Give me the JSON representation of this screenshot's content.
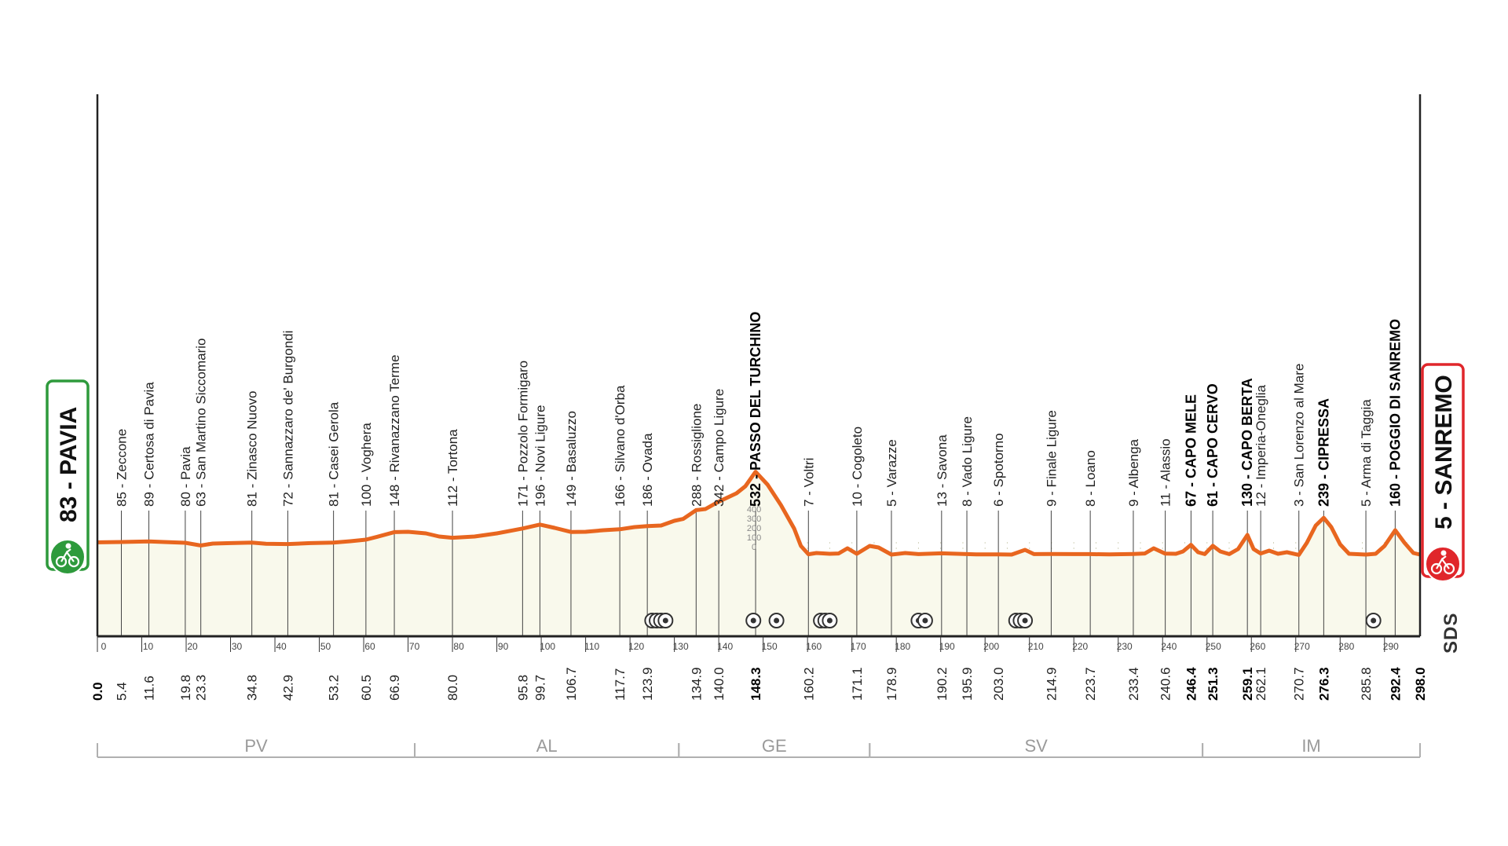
{
  "chart_data": {
    "type": "area",
    "title": "",
    "xlabel": "",
    "ylabel": "",
    "xlim": [
      0,
      298
    ],
    "ylim": [
      0,
      600
    ],
    "grid": true,
    "start": {
      "label": "83 - PAVIA",
      "color": "#2e9a3c"
    },
    "finish": {
      "label": "5 - SANREMO",
      "color": "#e0262b"
    },
    "brand": "SDS",
    "colors": {
      "profile": "#e8661f",
      "fill": "#f9f9ec",
      "axis": "#222222",
      "region": "#b0b0b0"
    },
    "axis_ticks": [
      0,
      10,
      20,
      30,
      40,
      50,
      60,
      70,
      80,
      90,
      100,
      110,
      120,
      130,
      140,
      150,
      160,
      170,
      180,
      190,
      200,
      210,
      220,
      230,
      240,
      250,
      260,
      270,
      280,
      290
    ],
    "altitude_ticks": [
      "400",
      "300",
      "200",
      "100",
      "0"
    ],
    "profile": [
      {
        "x": 0,
        "y": 83
      },
      {
        "x": 5.4,
        "y": 85
      },
      {
        "x": 11.6,
        "y": 89
      },
      {
        "x": 15,
        "y": 85
      },
      {
        "x": 19.8,
        "y": 80
      },
      {
        "x": 23.3,
        "y": 63
      },
      {
        "x": 26,
        "y": 75
      },
      {
        "x": 30,
        "y": 78
      },
      {
        "x": 34.8,
        "y": 81
      },
      {
        "x": 38,
        "y": 74
      },
      {
        "x": 42.9,
        "y": 72
      },
      {
        "x": 48,
        "y": 78
      },
      {
        "x": 53.2,
        "y": 81
      },
      {
        "x": 57,
        "y": 90
      },
      {
        "x": 60.5,
        "y": 100
      },
      {
        "x": 63,
        "y": 118
      },
      {
        "x": 66.9,
        "y": 148
      },
      {
        "x": 70,
        "y": 150
      },
      {
        "x": 74,
        "y": 140
      },
      {
        "x": 77,
        "y": 120
      },
      {
        "x": 80,
        "y": 112
      },
      {
        "x": 85,
        "y": 120
      },
      {
        "x": 90,
        "y": 140
      },
      {
        "x": 95.8,
        "y": 171
      },
      {
        "x": 99.7,
        "y": 196
      },
      {
        "x": 103,
        "y": 175
      },
      {
        "x": 106.7,
        "y": 149
      },
      {
        "x": 110,
        "y": 150
      },
      {
        "x": 114,
        "y": 160
      },
      {
        "x": 117.7,
        "y": 166
      },
      {
        "x": 121,
        "y": 180
      },
      {
        "x": 123.9,
        "y": 186
      },
      {
        "x": 127,
        "y": 190
      },
      {
        "x": 130,
        "y": 220
      },
      {
        "x": 132,
        "y": 232
      },
      {
        "x": 134.9,
        "y": 288
      },
      {
        "x": 137,
        "y": 295
      },
      {
        "x": 140,
        "y": 342
      },
      {
        "x": 144,
        "y": 395
      },
      {
        "x": 146,
        "y": 440
      },
      {
        "x": 148.3,
        "y": 532
      },
      {
        "x": 151,
        "y": 450
      },
      {
        "x": 154,
        "y": 320
      },
      {
        "x": 157,
        "y": 170
      },
      {
        "x": 158.5,
        "y": 60
      },
      {
        "x": 160.2,
        "y": 7
      },
      {
        "x": 162,
        "y": 15
      },
      {
        "x": 165,
        "y": 10
      },
      {
        "x": 167,
        "y": 12
      },
      {
        "x": 169,
        "y": 45
      },
      {
        "x": 171.1,
        "y": 10
      },
      {
        "x": 174,
        "y": 60
      },
      {
        "x": 176,
        "y": 50
      },
      {
        "x": 178.9,
        "y": 5
      },
      {
        "x": 182,
        "y": 15
      },
      {
        "x": 185,
        "y": 8
      },
      {
        "x": 190.2,
        "y": 13
      },
      {
        "x": 195.9,
        "y": 8
      },
      {
        "x": 198,
        "y": 6
      },
      {
        "x": 203,
        "y": 6
      },
      {
        "x": 206,
        "y": 5
      },
      {
        "x": 209,
        "y": 35
      },
      {
        "x": 211,
        "y": 8
      },
      {
        "x": 214.9,
        "y": 9
      },
      {
        "x": 220,
        "y": 8
      },
      {
        "x": 223.7,
        "y": 8
      },
      {
        "x": 228,
        "y": 6
      },
      {
        "x": 233.4,
        "y": 9
      },
      {
        "x": 236,
        "y": 12
      },
      {
        "x": 238,
        "y": 45
      },
      {
        "x": 240.6,
        "y": 11
      },
      {
        "x": 243,
        "y": 10
      },
      {
        "x": 244.6,
        "y": 25
      },
      {
        "x": 246.4,
        "y": 67
      },
      {
        "x": 248,
        "y": 20
      },
      {
        "x": 249.5,
        "y": 8
      },
      {
        "x": 251.3,
        "y": 61
      },
      {
        "x": 253,
        "y": 25
      },
      {
        "x": 255,
        "y": 8
      },
      {
        "x": 257,
        "y": 40
      },
      {
        "x": 259.1,
        "y": 130
      },
      {
        "x": 260.5,
        "y": 40
      },
      {
        "x": 262.1,
        "y": 12
      },
      {
        "x": 264,
        "y": 30
      },
      {
        "x": 266,
        "y": 10
      },
      {
        "x": 268,
        "y": 20
      },
      {
        "x": 270.7,
        "y": 3
      },
      {
        "x": 272.5,
        "y": 80
      },
      {
        "x": 274.5,
        "y": 190
      },
      {
        "x": 276.3,
        "y": 239
      },
      {
        "x": 278,
        "y": 180
      },
      {
        "x": 280,
        "y": 70
      },
      {
        "x": 282,
        "y": 10
      },
      {
        "x": 285.8,
        "y": 5
      },
      {
        "x": 288,
        "y": 10
      },
      {
        "x": 290,
        "y": 60
      },
      {
        "x": 292.4,
        "y": 160
      },
      {
        "x": 294.5,
        "y": 80
      },
      {
        "x": 296.5,
        "y": 15
      },
      {
        "x": 298,
        "y": 5
      }
    ],
    "locations": [
      {
        "km": 5.4,
        "km_label": "5.4",
        "label": "85 - Zeccone",
        "major": false
      },
      {
        "km": 11.6,
        "km_label": "11.6",
        "label": "89 - Certosa di Pavia",
        "major": false
      },
      {
        "km": 19.8,
        "km_label": "19.8",
        "label": "80 - Pavia",
        "major": false
      },
      {
        "km": 23.3,
        "km_label": "23.3",
        "label": "63 - San Martino Siccomario",
        "major": false
      },
      {
        "km": 34.8,
        "km_label": "34.8",
        "label": "81 - Zinasco Nuovo",
        "major": false
      },
      {
        "km": 42.9,
        "km_label": "42.9",
        "label": "72 - Sannazzaro de' Burgondi",
        "major": false
      },
      {
        "km": 53.2,
        "km_label": "53.2",
        "label": "81 - Casei Gerola",
        "major": false
      },
      {
        "km": 60.5,
        "km_label": "60.5",
        "label": "100 - Voghera",
        "major": false
      },
      {
        "km": 66.9,
        "km_label": "66.9",
        "label": "148 - Rivanazzano Terme",
        "major": false
      },
      {
        "km": 80.0,
        "km_label": "80.0",
        "label": "112 - Tortona",
        "major": false
      },
      {
        "km": 95.8,
        "km_label": "95.8",
        "label": "171 - Pozzolo Formigaro",
        "major": false
      },
      {
        "km": 99.7,
        "km_label": "99.7",
        "label": "196 - Novi Ligure",
        "major": false
      },
      {
        "km": 106.7,
        "km_label": "106.7",
        "label": "149 - Basaluzzo",
        "major": false
      },
      {
        "km": 117.7,
        "km_label": "117.7",
        "label": "166 - Silvano d'Orba",
        "major": false
      },
      {
        "km": 123.9,
        "km_label": "123.9",
        "label": "186 - Ovada",
        "major": false
      },
      {
        "km": 134.9,
        "km_label": "134.9",
        "label": "288 - Rossiglione",
        "major": false
      },
      {
        "km": 140.0,
        "km_label": "140.0",
        "label": "342 - Campo Ligure",
        "major": false
      },
      {
        "km": 148.3,
        "km_label": "148.3",
        "label": "532 - PASSO DEL TURCHINO",
        "major": true
      },
      {
        "km": 160.2,
        "km_label": "160.2",
        "label": "7 - Voltri",
        "major": false
      },
      {
        "km": 171.1,
        "km_label": "171.1",
        "label": "10 - Cogoleto",
        "major": false
      },
      {
        "km": 178.9,
        "km_label": "178.9",
        "label": "5 - Varazze",
        "major": false
      },
      {
        "km": 190.2,
        "km_label": "190.2",
        "label": "13 - Savona",
        "major": false
      },
      {
        "km": 195.9,
        "km_label": "195.9",
        "label": "8 - Vado Ligure",
        "major": false
      },
      {
        "km": 203.0,
        "km_label": "203.0",
        "label": "6 - Spotorno",
        "major": false
      },
      {
        "km": 214.9,
        "km_label": "214.9",
        "label": "9 - Finale Ligure",
        "major": false
      },
      {
        "km": 223.7,
        "km_label": "223.7",
        "label": "8 - Loano",
        "major": false
      },
      {
        "km": 233.4,
        "km_label": "233.4",
        "label": "9 - Albenga",
        "major": false
      },
      {
        "km": 240.6,
        "km_label": "240.6",
        "label": "11 - Alassio",
        "major": false
      },
      {
        "km": 246.4,
        "km_label": "246.4",
        "label": "67 - CAPO MELE",
        "major": true
      },
      {
        "km": 251.3,
        "km_label": "251.3",
        "label": "61 - CAPO CERVO",
        "major": true
      },
      {
        "km": 259.1,
        "km_label": "259.1",
        "label": "130 - CAPO BERTA",
        "major": true
      },
      {
        "km": 262.1,
        "km_label": "262.1",
        "label": "12 - Imperia-Oneglia",
        "major": false
      },
      {
        "km": 270.7,
        "km_label": "270.7",
        "label": "3 - San Lorenzo al Mare",
        "major": false
      },
      {
        "km": 276.3,
        "km_label": "276.3",
        "label": "239 - CIPRESSA",
        "major": true
      },
      {
        "km": 285.8,
        "km_label": "285.8",
        "label": "5 - Arma di Taggia",
        "major": false
      },
      {
        "km": 292.4,
        "km_label": "292.4",
        "label": "160 - POGGIO DI SANREMO",
        "major": true
      }
    ],
    "end_km_labels": [
      {
        "km": 0,
        "label": "0.0"
      },
      {
        "km": 298,
        "label": "298.0"
      }
    ],
    "markers": [
      {
        "km": 125,
        "label": "◎"
      },
      {
        "km": 126,
        "label": "◎"
      },
      {
        "km": 127,
        "label": "◎"
      },
      {
        "km": 128,
        "label": "◎"
      },
      {
        "km": 147.8,
        "label": "◎"
      },
      {
        "km": 153,
        "label": "◎"
      },
      {
        "km": 163,
        "label": "◎"
      },
      {
        "km": 164,
        "label": "◎"
      },
      {
        "km": 165,
        "label": "◎"
      },
      {
        "km": 185,
        "label": "◎"
      },
      {
        "km": 186.5,
        "label": "◎"
      },
      {
        "km": 207,
        "label": "◎"
      },
      {
        "km": 208,
        "label": "◎"
      },
      {
        "km": 209,
        "label": "◎"
      },
      {
        "km": 287.5,
        "label": "◎"
      }
    ],
    "regions": [
      {
        "label": "PV",
        "start": 0,
        "end": 71.5
      },
      {
        "label": "AL",
        "start": 71.5,
        "end": 131
      },
      {
        "label": "GE",
        "start": 131,
        "end": 174
      },
      {
        "label": "SV",
        "start": 174,
        "end": 249
      },
      {
        "label": "IM",
        "start": 249,
        "end": 298
      }
    ]
  }
}
